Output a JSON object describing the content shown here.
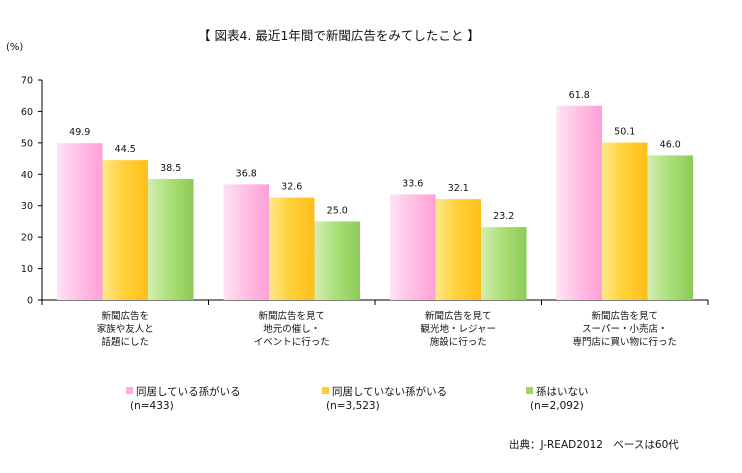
{
  "title": "【 図表4. 最近1年間で新聞広告をみてしたこと 】",
  "unit_label": "(%)",
  "source": "出典：J-READ2012　ベースは60代",
  "chart_data": {
    "type": "bar",
    "title": "【 図表4. 最近1年間で新聞広告をみてしたこと 】",
    "ylabel": "(%)",
    "ylim": [
      0,
      70
    ],
    "yticks": [
      0,
      10,
      20,
      30,
      40,
      50,
      60,
      70
    ],
    "categories": [
      [
        "新聞広告を",
        "家族や友人と",
        "話題にした"
      ],
      [
        "新聞広告を見て",
        "地元の催し・",
        "イベントに行った"
      ],
      [
        "新聞広告を見て",
        "観光地・レジャー",
        "施設に行った"
      ],
      [
        "新聞広告を見て",
        "スーパー・小売店・",
        "専門店に買い物に行った"
      ]
    ],
    "series": [
      {
        "name": "同居している孫がいる",
        "n": "(n=433)",
        "color": "#ffaedc",
        "values": [
          49.9,
          36.8,
          33.6,
          61.8
        ]
      },
      {
        "name": "同居していない孫がいる",
        "n": "(n=3,523)",
        "color": "#ffcc33",
        "values": [
          44.5,
          32.6,
          32.1,
          50.1
        ]
      },
      {
        "name": "孫はいない",
        "n": "(n=2,092)",
        "color": "#a0d468",
        "values": [
          38.5,
          25.0,
          23.2,
          46.0
        ]
      }
    ]
  }
}
